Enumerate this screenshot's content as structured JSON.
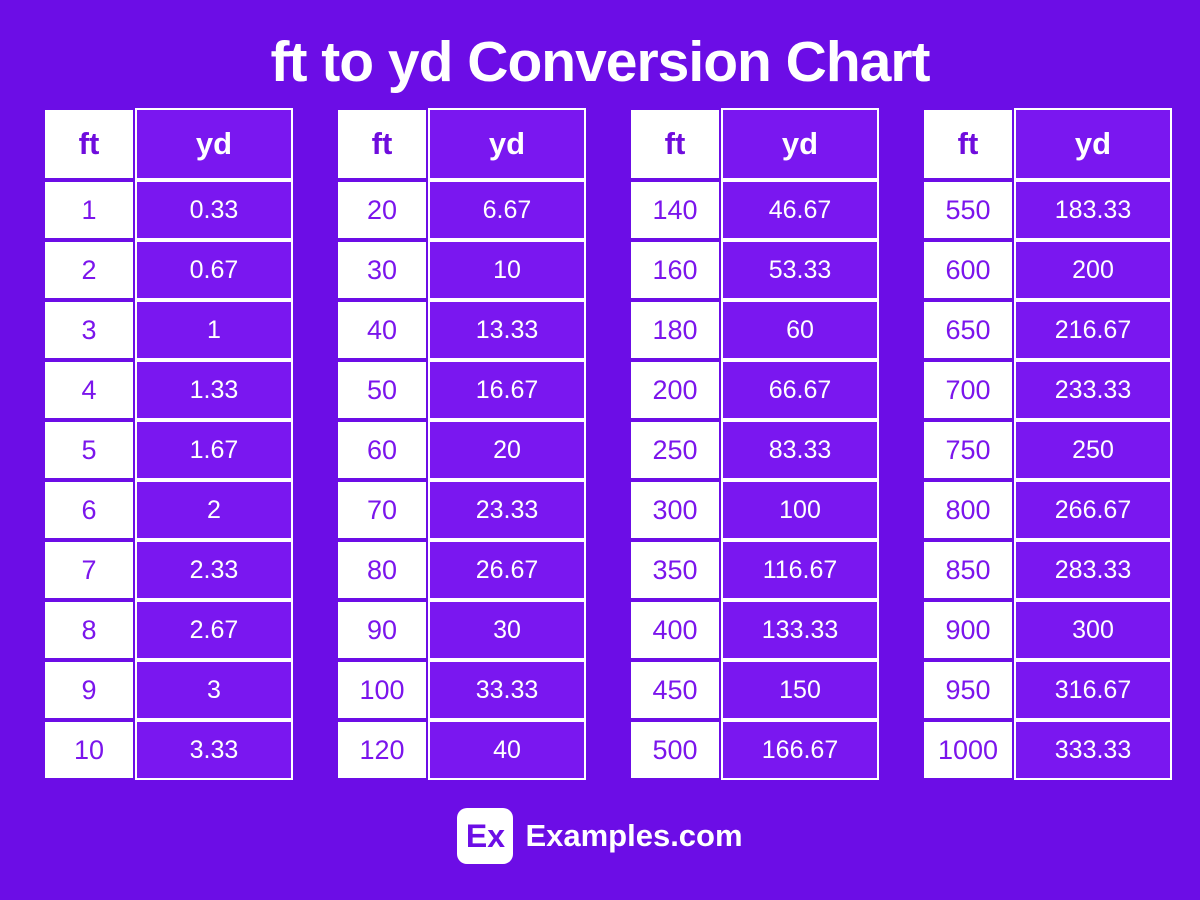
{
  "page": {
    "background_color": "#6C0DE6",
    "cell_purple": "#7A17F0",
    "text_purple": "#7B15EC",
    "white": "#FFFFFF"
  },
  "header": {
    "title": "ft to yd Conversion Chart"
  },
  "chart_data": {
    "type": "table",
    "title": "ft to yd Conversion Chart",
    "columns": [
      "ft",
      "yd"
    ],
    "tables": [
      {
        "rows": [
          [
            "1",
            "0.33"
          ],
          [
            "2",
            "0.67"
          ],
          [
            "3",
            "1"
          ],
          [
            "4",
            "1.33"
          ],
          [
            "5",
            "1.67"
          ],
          [
            "6",
            "2"
          ],
          [
            "7",
            "2.33"
          ],
          [
            "8",
            "2.67"
          ],
          [
            "9",
            "3"
          ],
          [
            "10",
            "3.33"
          ]
        ]
      },
      {
        "rows": [
          [
            "20",
            "6.67"
          ],
          [
            "30",
            "10"
          ],
          [
            "40",
            "13.33"
          ],
          [
            "50",
            "16.67"
          ],
          [
            "60",
            "20"
          ],
          [
            "70",
            "23.33"
          ],
          [
            "80",
            "26.67"
          ],
          [
            "90",
            "30"
          ],
          [
            "100",
            "33.33"
          ],
          [
            "120",
            "40"
          ]
        ]
      },
      {
        "rows": [
          [
            "140",
            "46.67"
          ],
          [
            "160",
            "53.33"
          ],
          [
            "180",
            "60"
          ],
          [
            "200",
            "66.67"
          ],
          [
            "250",
            "83.33"
          ],
          [
            "300",
            "100"
          ],
          [
            "350",
            "116.67"
          ],
          [
            "400",
            "133.33"
          ],
          [
            "450",
            "150"
          ],
          [
            "500",
            "166.67"
          ]
        ]
      },
      {
        "rows": [
          [
            "550",
            "183.33"
          ],
          [
            "600",
            "200"
          ],
          [
            "650",
            "216.67"
          ],
          [
            "700",
            "233.33"
          ],
          [
            "750",
            "250"
          ],
          [
            "800",
            "266.67"
          ],
          [
            "850",
            "283.33"
          ],
          [
            "900",
            "300"
          ],
          [
            "950",
            "316.67"
          ],
          [
            "1000",
            "333.33"
          ]
        ]
      }
    ]
  },
  "footer": {
    "logo_text": "Ex",
    "brand": "Examples.com"
  }
}
